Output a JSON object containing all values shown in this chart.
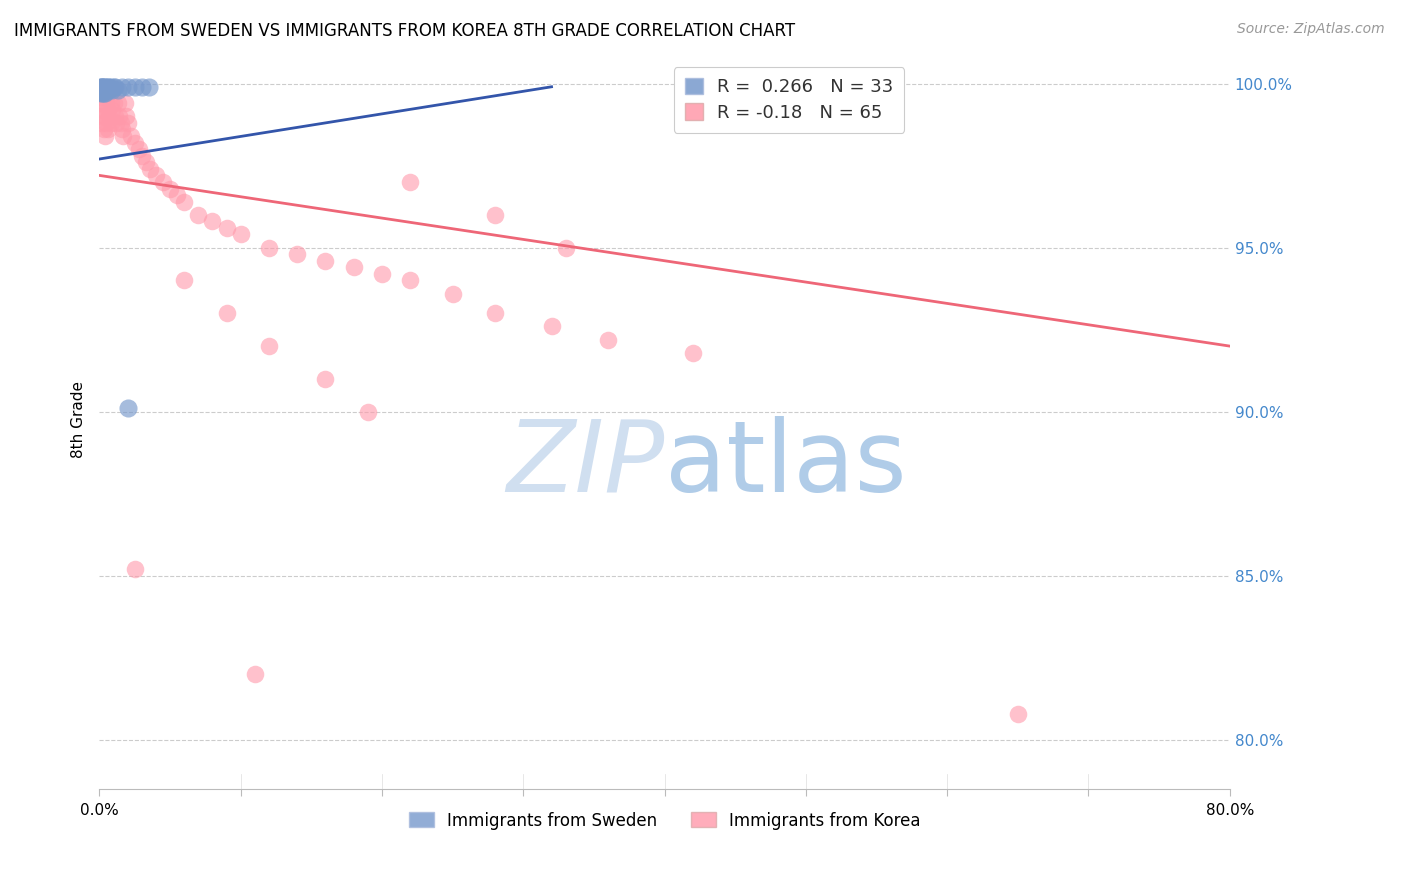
{
  "title": "IMMIGRANTS FROM SWEDEN VS IMMIGRANTS FROM KOREA 8TH GRADE CORRELATION CHART",
  "source": "Source: ZipAtlas.com",
  "ylabel": "8th Grade",
  "xlim": [
    0.0,
    0.8
  ],
  "ylim": [
    0.785,
    1.01
  ],
  "x_ticks": [
    0.0,
    0.1,
    0.2,
    0.3,
    0.4,
    0.5,
    0.6,
    0.7,
    0.8
  ],
  "x_tick_labels": [
    "0.0%",
    "",
    "",
    "",
    "",
    "",
    "",
    "",
    "80.0%"
  ],
  "y_ticks": [
    0.8,
    0.85,
    0.9,
    0.95,
    1.0
  ],
  "y_tick_labels": [
    "80.0%",
    "85.0%",
    "90.0%",
    "95.0%",
    "100.0%"
  ],
  "sweden_R": 0.266,
  "sweden_N": 33,
  "korea_R": -0.18,
  "korea_N": 65,
  "sweden_color": "#7799CC",
  "korea_color": "#FF99AA",
  "sweden_line_color": "#3355AA",
  "korea_line_color": "#EE6677",
  "legend_label_sweden": "Immigrants from Sweden",
  "legend_label_korea": "Immigrants from Korea",
  "sweden_x": [
    0.001,
    0.001,
    0.001,
    0.001,
    0.001,
    0.002,
    0.002,
    0.002,
    0.002,
    0.002,
    0.003,
    0.003,
    0.003,
    0.004,
    0.004,
    0.004,
    0.005,
    0.005,
    0.006,
    0.006,
    0.007,
    0.007,
    0.008,
    0.009,
    0.01,
    0.011,
    0.013,
    0.016,
    0.02,
    0.025,
    0.03,
    0.035,
    0.02
  ],
  "sweden_y": [
    0.999,
    0.998,
    0.997,
    0.999,
    0.998,
    0.999,
    0.998,
    0.997,
    0.999,
    0.998,
    0.999,
    0.998,
    0.997,
    0.999,
    0.998,
    0.997,
    0.999,
    0.998,
    0.999,
    0.998,
    0.999,
    0.998,
    0.999,
    0.998,
    0.999,
    0.999,
    0.998,
    0.999,
    0.999,
    0.999,
    0.999,
    0.999,
    0.901
  ],
  "sweden_line_x": [
    0.0,
    0.32
  ],
  "sweden_line_y": [
    0.977,
    0.999
  ],
  "korea_x": [
    0.001,
    0.001,
    0.002,
    0.002,
    0.003,
    0.003,
    0.004,
    0.004,
    0.005,
    0.005,
    0.006,
    0.006,
    0.007,
    0.007,
    0.008,
    0.008,
    0.009,
    0.01,
    0.011,
    0.012,
    0.013,
    0.014,
    0.015,
    0.016,
    0.017,
    0.018,
    0.019,
    0.02,
    0.022,
    0.025,
    0.028,
    0.03,
    0.033,
    0.036,
    0.04,
    0.045,
    0.05,
    0.055,
    0.06,
    0.07,
    0.08,
    0.09,
    0.1,
    0.12,
    0.14,
    0.16,
    0.18,
    0.2,
    0.22,
    0.25,
    0.28,
    0.32,
    0.36,
    0.42,
    0.025,
    0.06,
    0.09,
    0.12,
    0.16,
    0.19,
    0.22,
    0.28,
    0.33,
    0.65,
    0.11
  ],
  "korea_y": [
    0.99,
    0.996,
    0.988,
    0.994,
    0.986,
    0.992,
    0.984,
    0.99,
    0.988,
    0.994,
    0.986,
    0.992,
    0.99,
    0.996,
    0.988,
    0.994,
    0.992,
    0.994,
    0.99,
    0.988,
    0.994,
    0.99,
    0.988,
    0.986,
    0.984,
    0.994,
    0.99,
    0.988,
    0.984,
    0.982,
    0.98,
    0.978,
    0.976,
    0.974,
    0.972,
    0.97,
    0.968,
    0.966,
    0.964,
    0.96,
    0.958,
    0.956,
    0.954,
    0.95,
    0.948,
    0.946,
    0.944,
    0.942,
    0.94,
    0.936,
    0.93,
    0.926,
    0.922,
    0.918,
    0.852,
    0.94,
    0.93,
    0.92,
    0.91,
    0.9,
    0.97,
    0.96,
    0.95,
    0.808,
    0.82
  ],
  "korea_line_x": [
    0.0,
    0.8
  ],
  "korea_line_y": [
    0.972,
    0.92
  ]
}
